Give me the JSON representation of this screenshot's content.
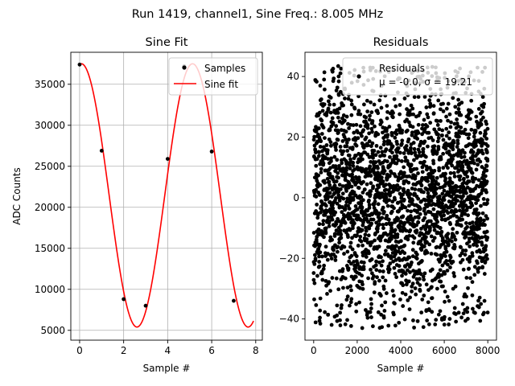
{
  "suptitle": "Run 1419, channel1, Sine Freq.: 8.005 MHz",
  "chart_data": [
    {
      "type": "line",
      "title": "Sine Fit",
      "xlabel": "Sample #",
      "ylabel": "ADC Counts",
      "xlim": [
        -0.4,
        8.3
      ],
      "ylim": [
        3800,
        38900
      ],
      "xticks": [
        0,
        2,
        4,
        6,
        8
      ],
      "yticks": [
        5000,
        10000,
        15000,
        20000,
        25000,
        30000,
        35000
      ],
      "grid": true,
      "legend_position": "top-right",
      "samples": {
        "name": "Samples",
        "color": "#000000",
        "x": [
          0,
          1,
          2,
          3,
          4,
          4.75,
          6,
          7
        ],
        "y": [
          37400,
          26900,
          8800,
          8000,
          25900,
          37200,
          26800,
          8600
        ]
      },
      "fit": {
        "name": "Sine fit",
        "color": "#ff0000",
        "x_range": [
          0,
          7.9
        ],
        "amplitude": 16050,
        "offset": 21450,
        "period": 5.05,
        "phase_peak_x": 0.08
      }
    },
    {
      "type": "scatter",
      "title": "Residuals",
      "xlabel": "Sample #",
      "legend_title": "Residuals",
      "legend_stats": "μ = -0.0, σ = 19.21",
      "legend_position": "top-right",
      "xlim": [
        -400,
        8400
      ],
      "ylim": [
        -47,
        48
      ],
      "xticks": [
        0,
        2000,
        4000,
        6000,
        8000
      ],
      "yticks": [
        -40,
        -20,
        0,
        20,
        40
      ],
      "grid": false,
      "n_points": 8000,
      "mean": 0.0,
      "std": 19.21,
      "min": -43,
      "max": 43.5,
      "color": "#000000"
    }
  ]
}
